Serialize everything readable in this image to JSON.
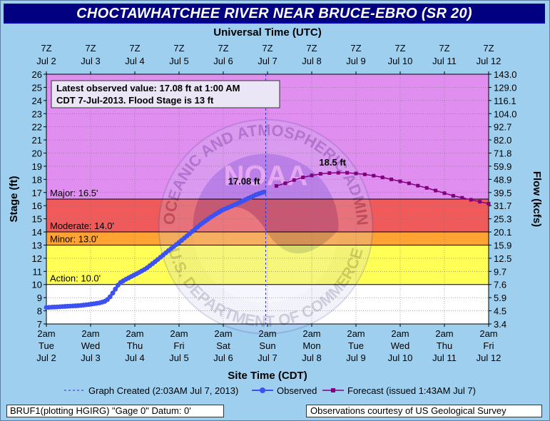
{
  "title": "CHOCTAWHATCHEE RIVER NEAR BRUCE-EBRO (SR 20)",
  "chart_data": {
    "type": "line",
    "top_axis_title": "Universal Time (UTC)",
    "bottom_axis_title": "Site Time (CDT)",
    "ylabel": "Stage (ft)",
    "y2label": "Flow (kcfs)",
    "ylim": [
      7,
      26
    ],
    "xlim_days": [
      0,
      10
    ],
    "y_ticks": [
      7,
      8,
      9,
      10,
      11,
      12,
      13,
      14,
      15,
      16,
      17,
      18,
      19,
      20,
      21,
      22,
      23,
      24,
      25,
      26
    ],
    "flow_ticks": [
      "3.4",
      "4.5",
      "5.9",
      "7.6",
      "9.7",
      "12.5",
      "15.9",
      "20.1",
      "25.3",
      "31.7",
      "39.5",
      "48.9",
      "59.9",
      "71.8",
      "82.0",
      "92.7",
      "104.0",
      "116.1",
      "129.0",
      "143.0"
    ],
    "top_ticks": [
      {
        "time": "7Z",
        "date": "Jul 2"
      },
      {
        "time": "7Z",
        "date": "Jul 3"
      },
      {
        "time": "7Z",
        "date": "Jul 4"
      },
      {
        "time": "7Z",
        "date": "Jul 5"
      },
      {
        "time": "7Z",
        "date": "Jul 6"
      },
      {
        "time": "7Z",
        "date": "Jul 7"
      },
      {
        "time": "7Z",
        "date": "Jul 8"
      },
      {
        "time": "7Z",
        "date": "Jul 9"
      },
      {
        "time": "7Z",
        "date": "Jul 10"
      },
      {
        "time": "7Z",
        "date": "Jul 11"
      },
      {
        "time": "7Z",
        "date": "Jul 12"
      }
    ],
    "bottom_ticks": [
      {
        "time": "2am",
        "day": "Tue",
        "date": "Jul 2"
      },
      {
        "time": "2am",
        "day": "Wed",
        "date": "Jul 3"
      },
      {
        "time": "2am",
        "day": "Thu",
        "date": "Jul 4"
      },
      {
        "time": "2am",
        "day": "Fri",
        "date": "Jul 5"
      },
      {
        "time": "2am",
        "day": "Sat",
        "date": "Jul 6"
      },
      {
        "time": "2am",
        "day": "Sun",
        "date": "Jul 7"
      },
      {
        "time": "2am",
        "day": "Mon",
        "date": "Jul 8"
      },
      {
        "time": "2am",
        "day": "Tue",
        "date": "Jul 9"
      },
      {
        "time": "2am",
        "day": "Wed",
        "date": "Jul 10"
      },
      {
        "time": "2am",
        "day": "Thu",
        "date": "Jul 11"
      },
      {
        "time": "2am",
        "day": "Fri",
        "date": "Jul 12"
      }
    ],
    "flood_bands": [
      {
        "label": "Major: 16.5'",
        "from": 16.5,
        "to": 26,
        "color": "#e08ef0"
      },
      {
        "label": "Moderate: 14.0'",
        "from": 14.0,
        "to": 16.5,
        "color": "#f05a5a"
      },
      {
        "label": "Minor: 13.0'",
        "from": 13.0,
        "to": 14.0,
        "color": "#ffa433"
      },
      {
        "label": "Action: 10.0'",
        "from": 10.0,
        "to": 13.0,
        "color": "#ffff55"
      },
      {
        "label": "",
        "from": 7,
        "to": 10.0,
        "color": "#ffffff"
      }
    ],
    "graph_created_day": 4.96,
    "series": [
      {
        "name": "Observed",
        "color": "#3d50f0",
        "points": [
          [
            0.0,
            8.25
          ],
          [
            0.25,
            8.3
          ],
          [
            0.5,
            8.35
          ],
          [
            0.75,
            8.4
          ],
          [
            1.0,
            8.5
          ],
          [
            1.2,
            8.6
          ],
          [
            1.35,
            8.75
          ],
          [
            1.45,
            9.1
          ],
          [
            1.55,
            9.6
          ],
          [
            1.65,
            10.1
          ],
          [
            1.8,
            10.4
          ],
          [
            2.0,
            10.75
          ],
          [
            2.25,
            11.2
          ],
          [
            2.5,
            11.85
          ],
          [
            2.75,
            12.55
          ],
          [
            3.0,
            13.2
          ],
          [
            3.25,
            13.9
          ],
          [
            3.5,
            14.6
          ],
          [
            3.75,
            15.2
          ],
          [
            4.0,
            15.7
          ],
          [
            4.25,
            16.05
          ],
          [
            4.5,
            16.45
          ],
          [
            4.75,
            16.85
          ],
          [
            4.96,
            17.08
          ]
        ]
      },
      {
        "name": "Forecast",
        "color": "#800080",
        "points": [
          [
            5.2,
            17.5
          ],
          [
            5.4,
            17.7
          ],
          [
            5.6,
            17.95
          ],
          [
            5.8,
            18.15
          ],
          [
            6.0,
            18.3
          ],
          [
            6.2,
            18.42
          ],
          [
            6.4,
            18.48
          ],
          [
            6.6,
            18.5
          ],
          [
            6.8,
            18.5
          ],
          [
            7.0,
            18.45
          ],
          [
            7.2,
            18.38
          ],
          [
            7.4,
            18.28
          ],
          [
            7.6,
            18.15
          ],
          [
            7.8,
            18.0
          ],
          [
            8.0,
            17.85
          ],
          [
            8.2,
            17.7
          ],
          [
            8.4,
            17.52
          ],
          [
            8.6,
            17.35
          ],
          [
            8.8,
            17.15
          ],
          [
            9.0,
            16.95
          ],
          [
            9.2,
            16.75
          ],
          [
            9.4,
            16.6
          ],
          [
            9.6,
            16.45
          ],
          [
            9.8,
            16.3
          ],
          [
            10.0,
            16.15
          ]
        ]
      }
    ],
    "annotations": {
      "observed_label": "17.08 ft",
      "forecast_peak_label": "18.5 ft",
      "forecast_peak_day": 6.6,
      "forecast_peak_value": 18.5,
      "info_line1": "Latest observed value: 17.08 ft at 1:00 AM",
      "info_line2a": "CDT 7-Jul-2013.",
      "info_line2b": "Flood Stage is 13 ft"
    },
    "legend": {
      "graph_created": "Graph Created (2:03AM Jul 7, 2013)",
      "observed": "Observed",
      "forecast": "Forecast (issued 1:43AM Jul 7)"
    },
    "watermark": {
      "top_text": "NATIONAL OCEANIC AND ATMOSPHERIC ADMINISTRATION",
      "center_text": "NOAA",
      "bottom_text": "U.S. DEPARTMENT OF COMMERCE"
    }
  },
  "footer": {
    "left": "BRUF1(plotting HGIRG) \"Gage 0\" Datum: 0'",
    "right": "Observations courtesy of US Geological Survey"
  }
}
